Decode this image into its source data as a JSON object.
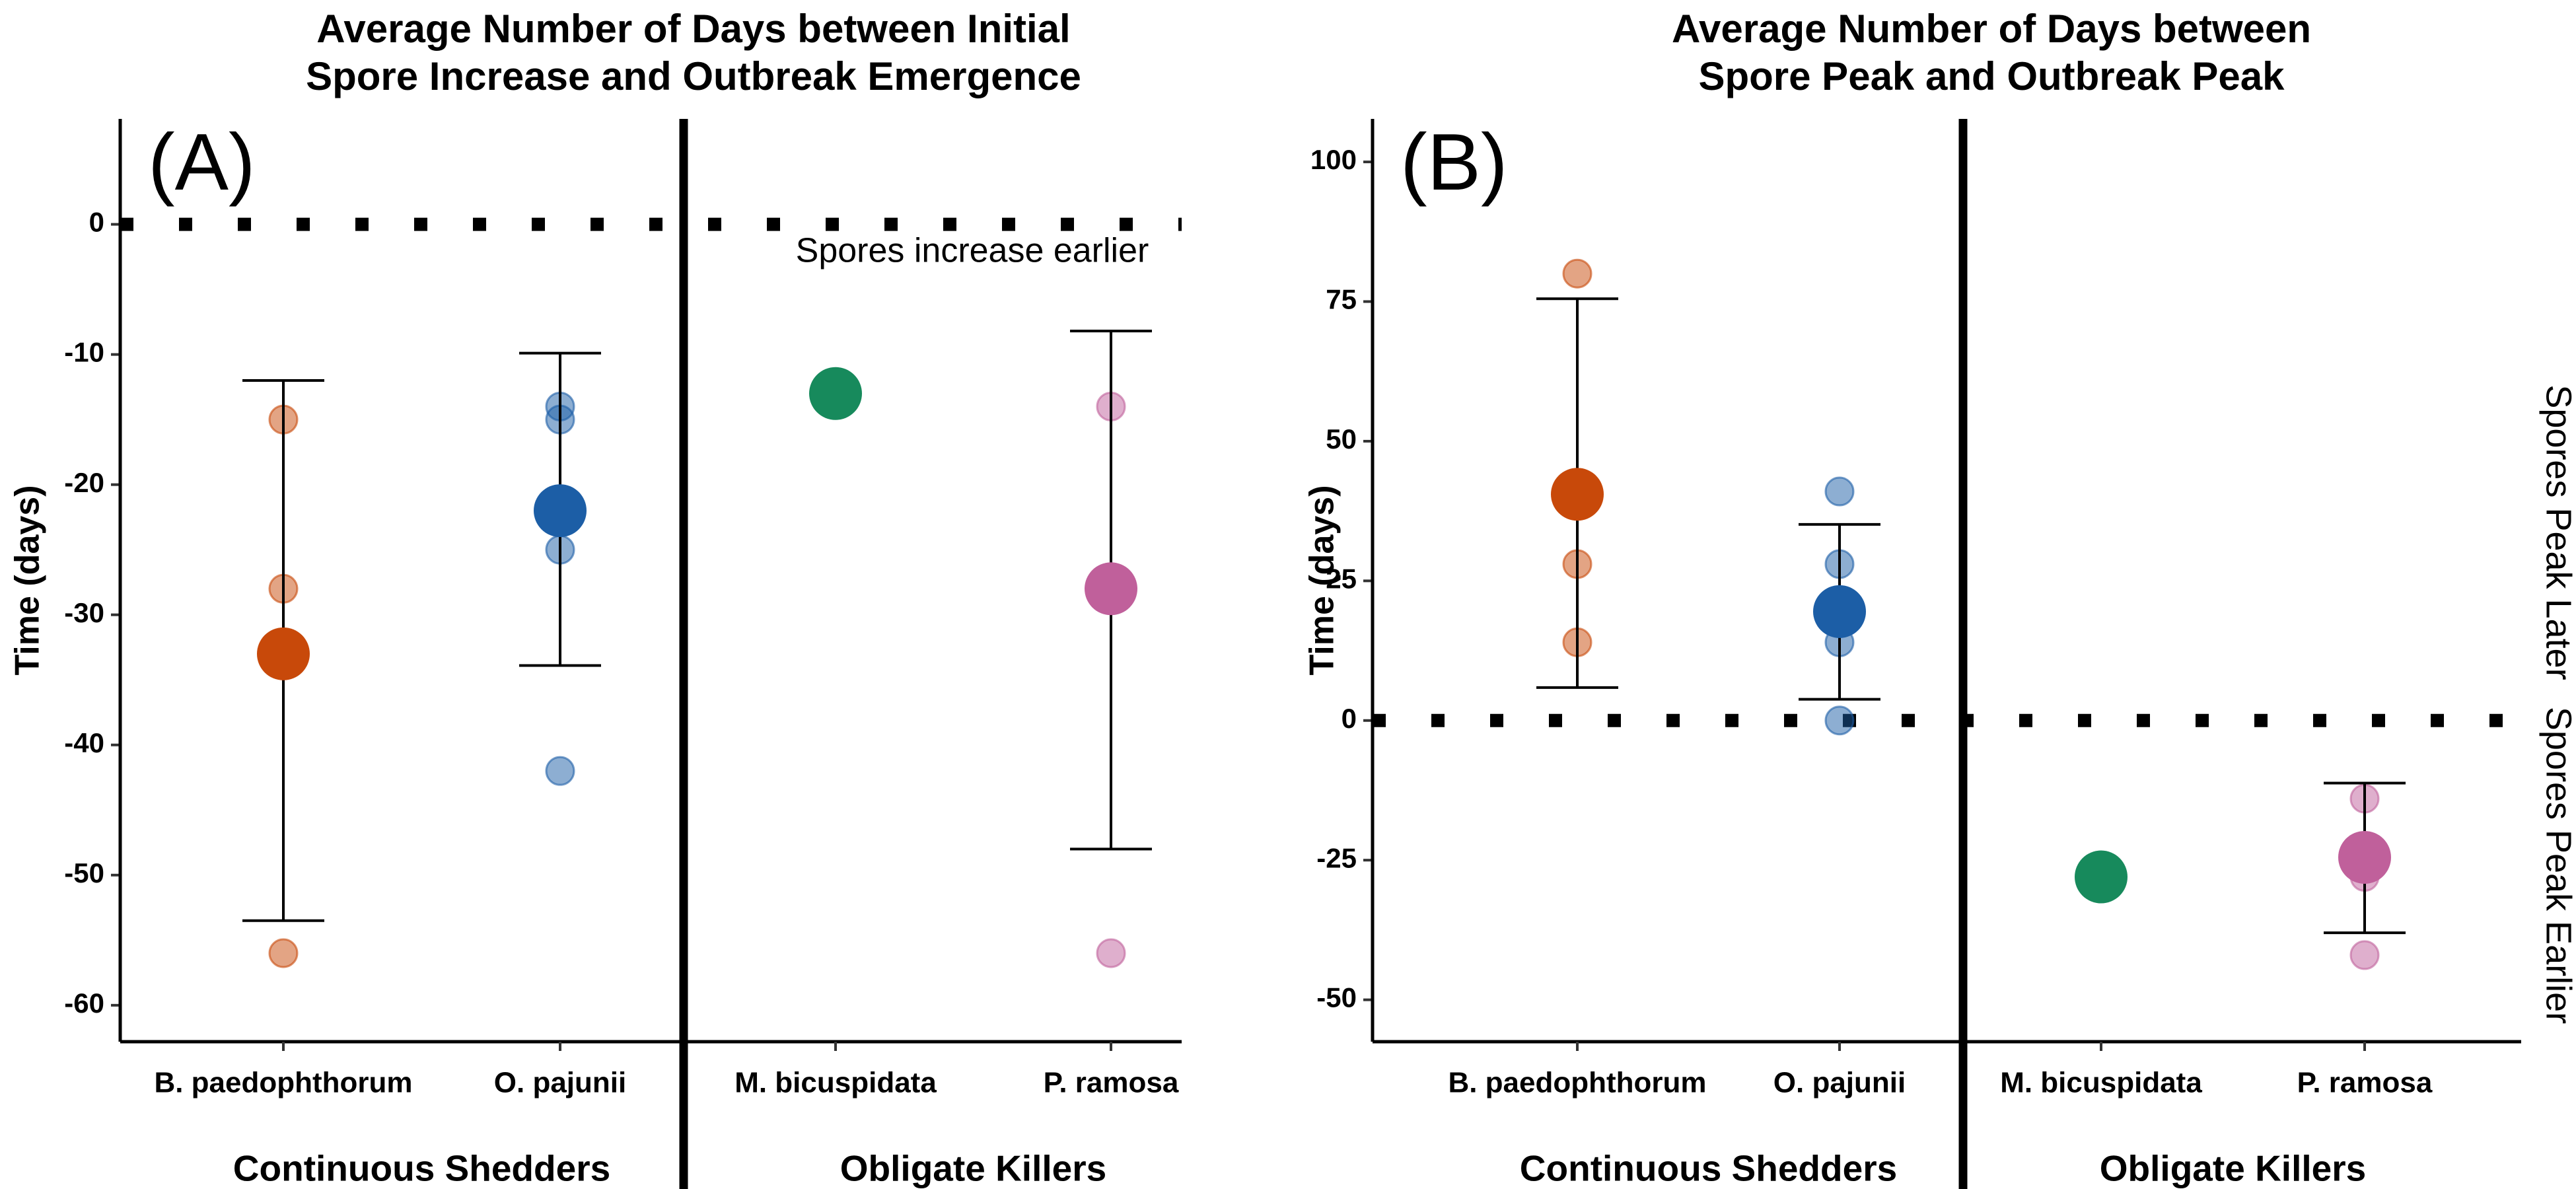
{
  "chart_data": [
    {
      "type": "dotplot",
      "title": [
        "Average Number of Days between Initial",
        "Spore Increase and Outbreak Emergence"
      ],
      "panel_label": "(A)",
      "y_label": "Time (days)",
      "categories": [
        "B. paedophthorum",
        "O. pajunii",
        "M. bicuspidata",
        "P. ramosa"
      ],
      "groups": [
        "Continuous Shedders",
        "Obligate Killers"
      ],
      "colors": [
        "#c8490a",
        "#1c5ea6",
        "#178a5c",
        "#c0609b"
      ],
      "individual_values": [
        [
          -15,
          -28,
          -56
        ],
        [
          -14,
          -15,
          -25,
          -42
        ],
        [],
        [
          -14,
          -56
        ]
      ],
      "means": [
        -33,
        -22,
        -13,
        -28
      ],
      "error_low": [
        -53.5,
        -33.9,
        null,
        -48
      ],
      "error_high": [
        -12,
        -9.9,
        null,
        -8.2
      ],
      "reference_line": 0,
      "annotation": "Spores increase earlier",
      "ylim": [
        -62.8,
        8.1
      ],
      "yticks": [
        0,
        -10,
        -20,
        -30,
        -40,
        -50,
        -60
      ]
    },
    {
      "type": "dotplot",
      "title": [
        "Average Number of Days between",
        "Spore Peak and Outbreak Peak"
      ],
      "panel_label": "(B)",
      "y_label": "Time (days)",
      "categories": [
        "B. paedophthorum",
        "O. pajunii",
        "M. bicuspidata",
        "P. ramosa"
      ],
      "groups": [
        "Continuous Shedders",
        "Obligate Killers"
      ],
      "colors": [
        "#c8490a",
        "#1c5ea6",
        "#178a5c",
        "#c0609b"
      ],
      "individual_values": [
        [
          80,
          28,
          14
        ],
        [
          41,
          28,
          14,
          0
        ],
        [],
        [
          -14,
          -28,
          -42
        ]
      ],
      "means": [
        40.5,
        19.5,
        -28,
        -24.5
      ],
      "error_low": [
        5.9,
        3.8,
        null,
        -38
      ],
      "error_high": [
        75.5,
        35.1,
        null,
        -11.2
      ],
      "reference_line": 0,
      "side_labels": [
        "Spores Peak Later",
        "Spores Peak Earlier"
      ],
      "ylim": [
        -57.5,
        107.7
      ],
      "yticks": [
        100,
        75,
        50,
        25,
        0,
        -25,
        -50
      ]
    }
  ]
}
